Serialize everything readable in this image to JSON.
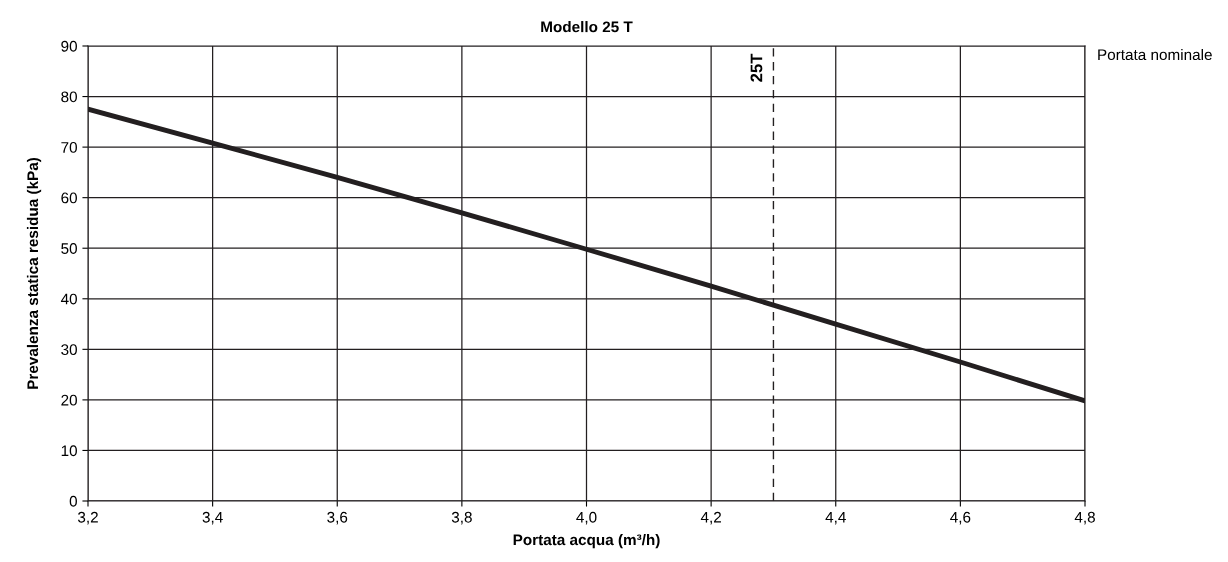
{
  "chart_data": {
    "type": "line",
    "title": "Modello 25 T",
    "xlabel": "Portata acqua (m³/h)",
    "ylabel": "Prevalenza statica residua (kPa)",
    "x": [
      3.2,
      3.4,
      3.6,
      3.8,
      4.0,
      4.2,
      4.4,
      4.6,
      4.8
    ],
    "series": [
      {
        "color": "#231f20",
        "values": [
          77.5,
          70.8,
          64,
          57,
          49.8,
          42.5,
          35,
          27.5,
          19.8
        ]
      }
    ],
    "xlim": [
      3.2,
      4.8
    ],
    "xticks": [
      {
        "value": 3.2,
        "label": "3,2"
      },
      {
        "value": 3.4,
        "label": "3,4"
      },
      {
        "value": 3.6,
        "label": "3,6"
      },
      {
        "value": 3.8,
        "label": "3,8"
      },
      {
        "value": 4.0,
        "label": "4,0"
      },
      {
        "value": 4.2,
        "label": "4,2"
      },
      {
        "value": 4.4,
        "label": "4,4"
      },
      {
        "value": 4.6,
        "label": "4,6"
      },
      {
        "value": 4.8,
        "label": "4,8"
      }
    ],
    "ylim": [
      0,
      90
    ],
    "yticks": [
      0,
      10,
      20,
      30,
      40,
      50,
      60,
      70,
      80,
      90
    ],
    "grid": true,
    "marker": "none",
    "line_style": "solid",
    "ref_lines": [
      {
        "axis": "x",
        "value": 4.3,
        "label": "25T",
        "color": "#231f20",
        "line_style": "dashed"
      }
    ],
    "annotations": [
      "Portata nominale"
    ]
  }
}
